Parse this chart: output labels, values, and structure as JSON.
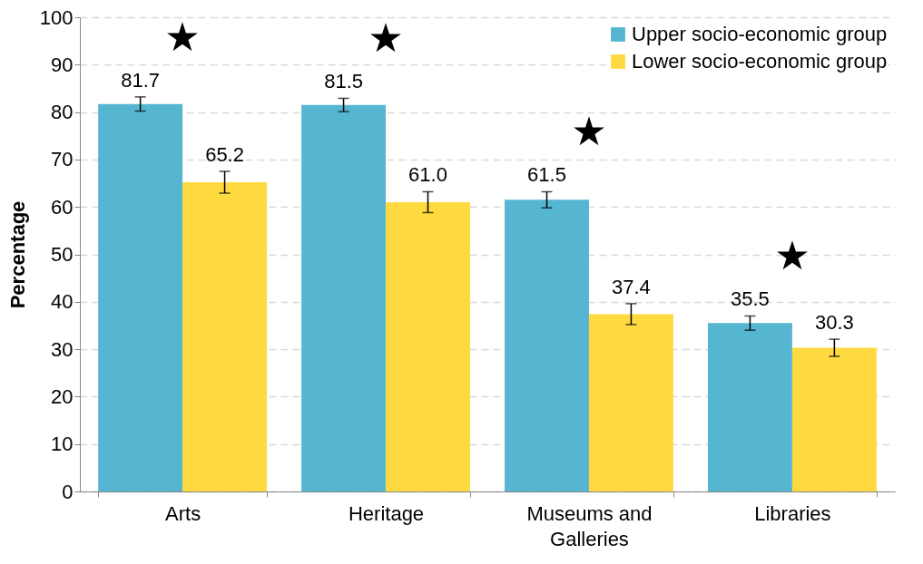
{
  "chart_data": {
    "type": "bar",
    "ylabel": "Percentage",
    "categories": [
      "Arts",
      "Heritage",
      "Museums and Galleries",
      "Libraries"
    ],
    "series": [
      {
        "name": "Upper socio-economic group",
        "color": "#56b6d1",
        "values": [
          81.7,
          81.5,
          61.5,
          35.5
        ],
        "errors": [
          1.5,
          1.4,
          1.7,
          1.5
        ],
        "value_labels": [
          "81.7",
          "81.5",
          "61.5",
          "35.5"
        ]
      },
      {
        "name": "Lower socio-economic group",
        "color": "#ffd940",
        "values": [
          65.2,
          61.0,
          37.4,
          30.3
        ],
        "errors": [
          2.3,
          2.2,
          2.2,
          1.8
        ],
        "value_labels": [
          "65.2",
          "61.0",
          "37.4",
          "30.3"
        ]
      }
    ],
    "ylim": [
      0,
      100
    ],
    "yticks": [
      0,
      10,
      20,
      30,
      40,
      50,
      60,
      70,
      80,
      90,
      100
    ],
    "grid": "y",
    "legend": "top right",
    "annotations": [
      "★",
      "★",
      "★",
      "★"
    ]
  }
}
